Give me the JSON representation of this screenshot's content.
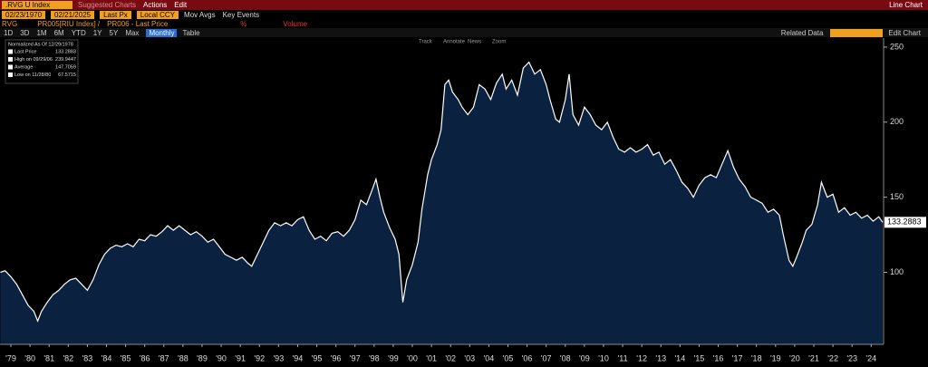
{
  "ui": {
    "ticker": ".RVG U Index",
    "suggested": "Suggested Charts",
    "actions": "Actions",
    "edit": "Edit",
    "chart_type": "Line Chart",
    "start": "02/23/1970",
    "end": "02/21/2025",
    "px": "Last Px",
    "ccy": "Local CCY",
    "mov": "Mov Avgs",
    "events": "Key Events",
    "sec": "RVG",
    "study1": "PR005[RIU Index] /",
    "study2": "PR006 - Last Price",
    "pct": "%",
    "volume": "Volume",
    "periods": [
      "1D",
      "3D",
      "1M",
      "6M",
      "YTD",
      "1Y",
      "5Y",
      "Max"
    ],
    "freq": "Monthly",
    "table": "Table",
    "related": "Related Data",
    "edit_chart": "Edit Chart",
    "tools": [
      "Track",
      "Annotate",
      "News",
      "Zoom"
    ],
    "norm": "Normalized As Of 12/29/1978",
    "high": "High on 09/29/06",
    "avg": "Average",
    "avg_value": "147.7059",
    "low": "Low on 11/28/80"
  },
  "chart_data": {
    "type": "area",
    "x": [
      1978.95,
      1979.2,
      1979.5,
      1979.8,
      1980.1,
      1980.4,
      1980.7,
      1980.9,
      1981.1,
      1981.4,
      1981.7,
      1982.0,
      1982.3,
      1982.6,
      1982.9,
      1983.2,
      1983.5,
      1983.8,
      1984.1,
      1984.4,
      1984.7,
      1985.0,
      1985.3,
      1985.6,
      1985.9,
      1986.2,
      1986.5,
      1986.8,
      1987.1,
      1987.4,
      1987.7,
      1988.0,
      1988.3,
      1988.6,
      1988.9,
      1989.2,
      1989.5,
      1989.8,
      1990.1,
      1990.4,
      1990.7,
      1991.0,
      1991.3,
      1991.6,
      1991.9,
      1992.1,
      1992.4,
      1992.7,
      1993.0,
      1993.3,
      1993.6,
      1993.9,
      1994.2,
      1994.5,
      1994.8,
      1995.1,
      1995.4,
      1995.7,
      1996.0,
      1996.3,
      1996.6,
      1996.9,
      1997.2,
      1997.5,
      1997.8,
      1998.1,
      1998.4,
      1998.6,
      1998.8,
      1999.0,
      1999.3,
      1999.6,
      1999.8,
      2000.0,
      2000.2,
      2000.5,
      2000.8,
      2001.0,
      2001.3,
      2001.5,
      2001.8,
      2002.0,
      2002.2,
      2002.4,
      2002.6,
      2002.9,
      2003.1,
      2003.4,
      2003.7,
      2004.0,
      2004.3,
      2004.6,
      2004.9,
      2005.2,
      2005.4,
      2005.7,
      2006.0,
      2006.3,
      2006.6,
      2006.9,
      2007.2,
      2007.5,
      2007.7,
      2008.0,
      2008.2,
      2008.5,
      2008.7,
      2008.9,
      2009.2,
      2009.5,
      2009.8,
      2010.1,
      2010.4,
      2010.7,
      2011.0,
      2011.3,
      2011.6,
      2011.9,
      2012.2,
      2012.5,
      2012.8,
      2013.1,
      2013.4,
      2013.7,
      2014.0,
      2014.3,
      2014.6,
      2014.9,
      2015.2,
      2015.5,
      2015.8,
      2016.1,
      2016.4,
      2016.7,
      2017.0,
      2017.3,
      2017.6,
      2017.9,
      2018.2,
      2018.5,
      2018.8,
      2019.1,
      2019.4,
      2019.7,
      2019.9,
      2020.2,
      2020.4,
      2020.6,
      2020.9,
      2021.1,
      2021.4,
      2021.7,
      2021.9,
      2022.2,
      2022.5,
      2022.8,
      2023.1,
      2023.4,
      2023.7,
      2024.0,
      2024.3,
      2024.6,
      2024.9,
      2025.1
    ],
    "series": [
      {
        "name": "Last Price",
        "color": "#ffffff",
        "fill": "#0a2240",
        "values": [
          100,
          101,
          97,
          92,
          85,
          78,
          74,
          67.5715,
          74,
          80,
          85,
          88,
          92,
          95,
          96,
          92,
          88,
          95,
          105,
          112,
          116,
          118,
          117,
          119,
          117,
          122,
          121,
          125,
          124,
          127,
          131,
          128,
          131,
          128,
          125,
          127,
          124,
          120,
          122,
          117,
          112,
          110,
          108,
          110,
          106,
          104,
          112,
          120,
          128,
          133,
          131,
          133,
          131,
          135,
          137,
          128,
          122,
          124,
          121,
          126,
          127,
          124,
          128,
          135,
          148,
          145,
          155,
          162,
          150,
          140,
          130,
          122,
          112,
          80,
          95,
          105,
          120,
          142,
          165,
          175,
          185,
          195,
          225,
          228,
          220,
          215,
          210,
          205,
          210,
          225,
          222,
          215,
          226,
          232,
          222,
          228,
          218,
          236,
          239.9447,
          232,
          235,
          225,
          215,
          202,
          200,
          215,
          232,
          205,
          198,
          210,
          205,
          198,
          195,
          200,
          190,
          182,
          180,
          183,
          180,
          182,
          185,
          178,
          180,
          172,
          175,
          168,
          160,
          156,
          150,
          158,
          163,
          165,
          163,
          172,
          181,
          170,
          162,
          157,
          150,
          148,
          146,
          140,
          142,
          138,
          125,
          108,
          104,
          110,
          120,
          128,
          132,
          145,
          160,
          150,
          152,
          140,
          143,
          138,
          140,
          136,
          138,
          134,
          137,
          133.2883
        ]
      }
    ],
    "xlim": [
      1978.93,
      2025.15
    ],
    "xticks": [
      {
        "value": 1979.5,
        "label": "'79"
      },
      {
        "value": 1980.5,
        "label": "'80"
      },
      {
        "value": 1981.5,
        "label": "'81"
      },
      {
        "value": 1982.5,
        "label": "'82"
      },
      {
        "value": 1983.5,
        "label": "'83"
      },
      {
        "value": 1984.5,
        "label": "'84"
      },
      {
        "value": 1985.5,
        "label": "'85"
      },
      {
        "value": 1986.5,
        "label": "'86"
      },
      {
        "value": 1987.5,
        "label": "'87"
      },
      {
        "value": 1988.5,
        "label": "'88"
      },
      {
        "value": 1989.5,
        "label": "'89"
      },
      {
        "value": 1990.5,
        "label": "'90"
      },
      {
        "value": 1991.5,
        "label": "'91"
      },
      {
        "value": 1992.5,
        "label": "'92"
      },
      {
        "value": 1993.5,
        "label": "'93"
      },
      {
        "value": 1994.5,
        "label": "'94"
      },
      {
        "value": 1995.5,
        "label": "'95"
      },
      {
        "value": 1996.5,
        "label": "'96"
      },
      {
        "value": 1997.5,
        "label": "'97"
      },
      {
        "value": 1998.5,
        "label": "'98"
      },
      {
        "value": 1999.5,
        "label": "'99"
      },
      {
        "value": 2000.5,
        "label": "'00"
      },
      {
        "value": 2001.5,
        "label": "'01"
      },
      {
        "value": 2002.5,
        "label": "'02"
      },
      {
        "value": 2003.5,
        "label": "'03"
      },
      {
        "value": 2004.5,
        "label": "'04"
      },
      {
        "value": 2005.5,
        "label": "'05"
      },
      {
        "value": 2006.5,
        "label": "'06"
      },
      {
        "value": 2007.5,
        "label": "'07"
      },
      {
        "value": 2008.5,
        "label": "'08"
      },
      {
        "value": 2009.5,
        "label": "'09"
      },
      {
        "value": 2010.5,
        "label": "'10"
      },
      {
        "value": 2011.5,
        "label": "'11"
      },
      {
        "value": 2012.5,
        "label": "'12"
      },
      {
        "value": 2013.5,
        "label": "'13"
      },
      {
        "value": 2014.5,
        "label": "'14"
      },
      {
        "value": 2015.5,
        "label": "'15"
      },
      {
        "value": 2016.5,
        "label": "'16"
      },
      {
        "value": 2017.5,
        "label": "'17"
      },
      {
        "value": 2018.5,
        "label": "'18"
      },
      {
        "value": 2019.5,
        "label": "'19"
      },
      {
        "value": 2020.5,
        "label": "'20"
      },
      {
        "value": 2021.5,
        "label": "'21"
      },
      {
        "value": 2022.5,
        "label": "'22"
      },
      {
        "value": 2023.5,
        "label": "'23"
      },
      {
        "value": 2024.5,
        "label": "'24"
      }
    ],
    "ylim": [
      52,
      256
    ],
    "yticks": [
      100,
      150,
      200,
      250
    ]
  }
}
